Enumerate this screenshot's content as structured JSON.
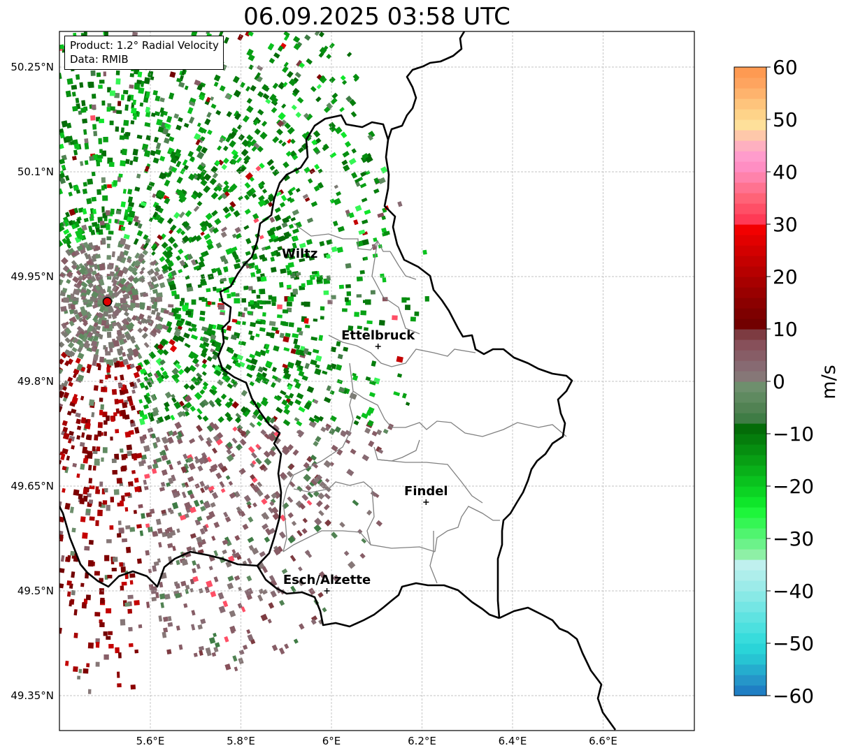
{
  "title": "06.09.2025 03:58 UTC",
  "info": {
    "product": "Product: 1.2° Radial Velocity",
    "source": "Data: RMIB"
  },
  "map": {
    "lon_range": [
      5.4,
      6.8
    ],
    "lat_range": [
      49.3,
      50.3
    ],
    "x_ticks": [
      {
        "value": 5.6,
        "label": "5.6°E"
      },
      {
        "value": 5.8,
        "label": "5.8°E"
      },
      {
        "value": 6.0,
        "label": "6°E"
      },
      {
        "value": 6.2,
        "label": "6.2°E"
      },
      {
        "value": 6.4,
        "label": "6.4°E"
      },
      {
        "value": 6.6,
        "label": "6.6°E"
      }
    ],
    "y_ticks": [
      {
        "value": 49.35,
        "label": "49.35°N"
      },
      {
        "value": 49.5,
        "label": "49.5°N"
      },
      {
        "value": 49.65,
        "label": "49.65°N"
      },
      {
        "value": 49.8,
        "label": "49.8°N"
      },
      {
        "value": 49.95,
        "label": "49.95°N"
      },
      {
        "value": 50.1,
        "label": "50.1°N"
      },
      {
        "value": 50.25,
        "label": "50.25°N"
      }
    ],
    "gridlines": true,
    "radar_site": {
      "lon": 5.505,
      "lat": 49.914
    },
    "cities": [
      {
        "name": "Wiltz",
        "lon": 5.93,
        "lat": 49.967,
        "marker": false
      },
      {
        "name": "Ettelbruck",
        "lon": 6.103,
        "lat": 49.85,
        "marker": true
      },
      {
        "name": "Findel",
        "lon": 6.209,
        "lat": 49.627,
        "marker": true
      },
      {
        "name": "Esch/Alzette",
        "lon": 5.99,
        "lat": 49.5,
        "marker": true
      }
    ]
  },
  "colorbar": {
    "label": "m/s",
    "min": -60,
    "max": 60,
    "ticks": [
      {
        "value": 60,
        "label": "60"
      },
      {
        "value": 50,
        "label": "50"
      },
      {
        "value": 40,
        "label": "40"
      },
      {
        "value": 30,
        "label": "30"
      },
      {
        "value": 20,
        "label": "20"
      },
      {
        "value": 10,
        "label": "10"
      },
      {
        "value": 0,
        "label": "0"
      },
      {
        "value": -10,
        "label": "−10"
      },
      {
        "value": -20,
        "label": "−20"
      },
      {
        "value": -30,
        "label": "−30"
      },
      {
        "value": -40,
        "label": "−40"
      },
      {
        "value": -50,
        "label": "−50"
      },
      {
        "value": -60,
        "label": "−60"
      }
    ],
    "stops": [
      {
        "from": -60,
        "to": -58,
        "color": "#1f7fc4"
      },
      {
        "from": -58,
        "to": -56,
        "color": "#2596c9"
      },
      {
        "from": -56,
        "to": -54,
        "color": "#25adce"
      },
      {
        "from": -54,
        "to": -52,
        "color": "#27c4d3"
      },
      {
        "from": -52,
        "to": -50,
        "color": "#2ad4d8"
      },
      {
        "from": -50,
        "to": -48,
        "color": "#38dcdc"
      },
      {
        "from": -48,
        "to": -46,
        "color": "#4ce0df"
      },
      {
        "from": -46,
        "to": -44,
        "color": "#5fe3e1"
      },
      {
        "from": -44,
        "to": -42,
        "color": "#74e6e4"
      },
      {
        "from": -42,
        "to": -40,
        "color": "#88e9e6"
      },
      {
        "from": -40,
        "to": -38,
        "color": "#9cebe9"
      },
      {
        "from": -38,
        "to": -36,
        "color": "#aeeeeb"
      },
      {
        "from": -36,
        "to": -34,
        "color": "#bff0ee"
      },
      {
        "from": -34,
        "to": -32,
        "color": "#8ef0a6"
      },
      {
        "from": -32,
        "to": -30,
        "color": "#6cf28a"
      },
      {
        "from": -30,
        "to": -28,
        "color": "#50f46f"
      },
      {
        "from": -28,
        "to": -26,
        "color": "#35f654"
      },
      {
        "from": -26,
        "to": -24,
        "color": "#1ef53b"
      },
      {
        "from": -24,
        "to": -22,
        "color": "#0fe62a"
      },
      {
        "from": -22,
        "to": -20,
        "color": "#0cd323"
      },
      {
        "from": -20,
        "to": -18,
        "color": "#0ac21e"
      },
      {
        "from": -18,
        "to": -16,
        "color": "#09b019"
      },
      {
        "from": -16,
        "to": -14,
        "color": "#089f14"
      },
      {
        "from": -14,
        "to": -12,
        "color": "#068e10"
      },
      {
        "from": -12,
        "to": -10,
        "color": "#057d0c"
      },
      {
        "from": -10,
        "to": -8,
        "color": "#046c08"
      },
      {
        "from": -8,
        "to": -6,
        "color": "#3f7c45"
      },
      {
        "from": -6,
        "to": -4,
        "color": "#518253"
      },
      {
        "from": -4,
        "to": -2,
        "color": "#5f8a60"
      },
      {
        "from": -2,
        "to": 0,
        "color": "#6e8f6d"
      },
      {
        "from": 0,
        "to": 2,
        "color": "#867777"
      },
      {
        "from": 2,
        "to": 4,
        "color": "#876a72"
      },
      {
        "from": 4,
        "to": 6,
        "color": "#875d66"
      },
      {
        "from": 6,
        "to": 8,
        "color": "#87505a"
      },
      {
        "from": 8,
        "to": 10,
        "color": "#7d3b41"
      },
      {
        "from": 10,
        "to": 12,
        "color": "#720000"
      },
      {
        "from": 12,
        "to": 14,
        "color": "#7e0000"
      },
      {
        "from": 14,
        "to": 16,
        "color": "#8b0000"
      },
      {
        "from": 16,
        "to": 18,
        "color": "#990000"
      },
      {
        "from": 18,
        "to": 20,
        "color": "#a70000"
      },
      {
        "from": 20,
        "to": 22,
        "color": "#b60000"
      },
      {
        "from": 22,
        "to": 24,
        "color": "#c40000"
      },
      {
        "from": 24,
        "to": 26,
        "color": "#d30000"
      },
      {
        "from": 26,
        "to": 28,
        "color": "#e20000"
      },
      {
        "from": 28,
        "to": 30,
        "color": "#f20000"
      },
      {
        "from": 30,
        "to": 32,
        "color": "#ff3a55"
      },
      {
        "from": 32,
        "to": 34,
        "color": "#ff4f66"
      },
      {
        "from": 34,
        "to": 36,
        "color": "#ff6377"
      },
      {
        "from": 36,
        "to": 38,
        "color": "#ff7290"
      },
      {
        "from": 38,
        "to": 40,
        "color": "#ff82ab"
      },
      {
        "from": 40,
        "to": 42,
        "color": "#ff8ec3"
      },
      {
        "from": 42,
        "to": 44,
        "color": "#ff9ccc"
      },
      {
        "from": 44,
        "to": 46,
        "color": "#feb0c0"
      },
      {
        "from": 46,
        "to": 48,
        "color": "#fec8aa"
      },
      {
        "from": 48,
        "to": 50,
        "color": "#fee09a"
      },
      {
        "from": 50,
        "to": 52,
        "color": "#fed389"
      },
      {
        "from": 52,
        "to": 54,
        "color": "#fec47c"
      },
      {
        "from": 54,
        "to": 56,
        "color": "#feb36d"
      },
      {
        "from": 56,
        "to": 58,
        "color": "#fea45f"
      },
      {
        "from": 58,
        "to": 60,
        "color": "#fe9a52"
      }
    ]
  },
  "legend_colors": {
    "outbound_dark": "#7a0000",
    "outbound_light": "#876070",
    "inbound_dark": "#046c08",
    "inbound_light": "#6e8f6d",
    "border_national": "#000000",
    "border_admin": "#808080",
    "grid": "#b0b0b0",
    "radar_marker": "#e00000"
  }
}
